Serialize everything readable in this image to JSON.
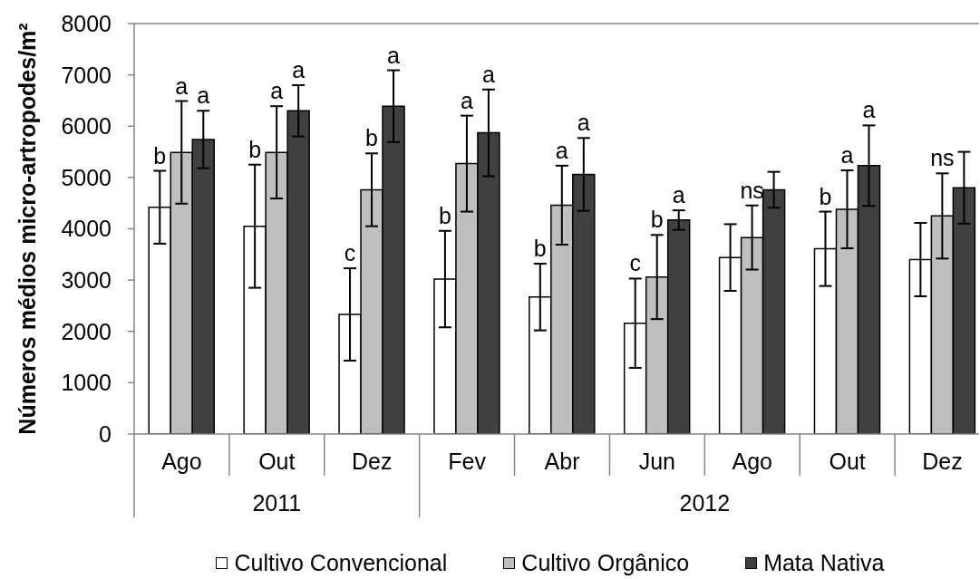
{
  "chart_data": {
    "type": "bar",
    "ylabel": "Números médios micro-artropodes/m²",
    "categories": [
      "Ago",
      "Out",
      "Dez",
      "Fev",
      "Abr",
      "Jun",
      "Ago",
      "Out",
      "Dez"
    ],
    "series": [
      {
        "name": "Cultivo Convencional",
        "color": "#ffffff",
        "values": [
          4420,
          4050,
          2330,
          3020,
          2670,
          2160,
          3440,
          3610,
          3400
        ],
        "errors": [
          710,
          1200,
          900,
          940,
          650,
          870,
          650,
          725,
          715
        ],
        "value_labels": [
          "b",
          "b",
          "c",
          "b",
          "b",
          "c",
          null,
          "b",
          null
        ]
      },
      {
        "name": "Cultivo Orgânico",
        "color": "#bfbfbf",
        "values": [
          5490,
          5490,
          4760,
          5270,
          4460,
          3060,
          3830,
          4380,
          4250
        ],
        "errors": [
          1000,
          900,
          710,
          935,
          770,
          820,
          625,
          760,
          830
        ],
        "value_labels": [
          "a",
          "a",
          "b",
          "a",
          "a",
          "b",
          "ns",
          "a",
          "ns"
        ]
      },
      {
        "name": "Mata Nativa",
        "color": "#404040",
        "values": [
          5740,
          6300,
          6390,
          5870,
          5060,
          4170,
          4760,
          5230,
          4800
        ],
        "errors": [
          560,
          500,
          700,
          845,
          710,
          190,
          350,
          785,
          700
        ],
        "value_labels": [
          "a",
          "a",
          "a",
          "a",
          "a",
          "a",
          null,
          "a",
          null
        ]
      }
    ],
    "ylim": [
      0,
      8000
    ],
    "yticks": [
      0,
      1000,
      2000,
      3000,
      4000,
      5000,
      6000,
      7000,
      8000
    ],
    "legend": "bottom",
    "annotations": [
      "2011",
      "2012"
    ]
  }
}
